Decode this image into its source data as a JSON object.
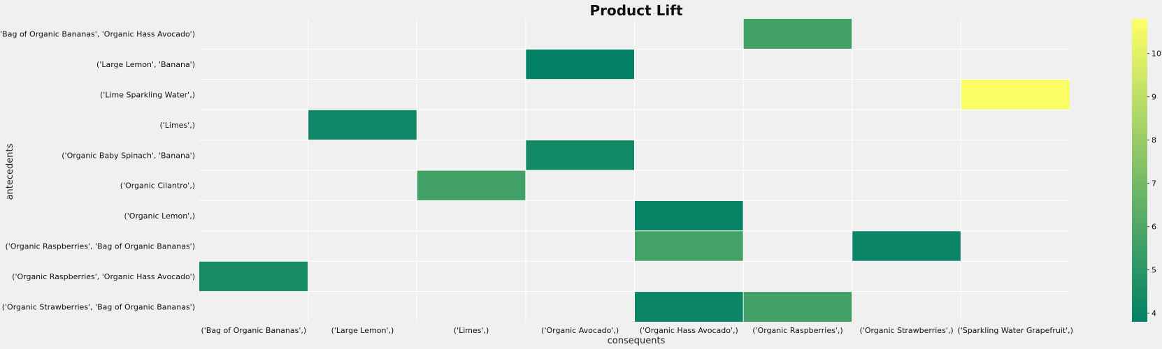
{
  "chart_data": {
    "type": "heatmap",
    "title": "Product Lift",
    "xlabel": "consequents",
    "ylabel": "antecedents",
    "x_categories": [
      "('Bag of Organic Bananas',)",
      "('Large Lemon',)",
      "('Limes',)",
      "('Organic Avocado',)",
      "('Organic Hass Avocado',)",
      "('Organic Raspberries',)",
      "('Organic Strawberries',)",
      "('Sparkling Water Grapefruit',)"
    ],
    "y_categories": [
      "('Bag of Organic Bananas', 'Organic Hass Avocado')",
      "('Large Lemon', 'Banana')",
      "('Lime Sparkling Water',)",
      "('Limes',)",
      "('Organic Baby Spinach', 'Banana')",
      "('Organic Cilantro',)",
      "('Organic Lemon',)",
      "('Organic Raspberries', 'Bag of Organic Bananas')",
      "('Organic Raspberries', 'Organic Hass Avocado')",
      "('Organic Strawberries', 'Bag of Organic Bananas')"
    ],
    "cells": [
      {
        "row": 0,
        "col": 5,
        "value": 5.6
      },
      {
        "row": 1,
        "col": 3,
        "value": 3.9
      },
      {
        "row": 2,
        "col": 7,
        "value": 10.7
      },
      {
        "row": 3,
        "col": 1,
        "value": 4.2
      },
      {
        "row": 4,
        "col": 3,
        "value": 4.3
      },
      {
        "row": 5,
        "col": 2,
        "value": 5.6
      },
      {
        "row": 6,
        "col": 4,
        "value": 4.0
      },
      {
        "row": 7,
        "col": 4,
        "value": 5.7
      },
      {
        "row": 7,
        "col": 6,
        "value": 4.1
      },
      {
        "row": 8,
        "col": 0,
        "value": 4.4
      },
      {
        "row": 9,
        "col": 4,
        "value": 4.1
      },
      {
        "row": 9,
        "col": 5,
        "value": 5.6
      }
    ],
    "colorbar": {
      "min": 3.8,
      "max": 10.8,
      "ticks": [
        4,
        5,
        6,
        7,
        8,
        9,
        10
      ],
      "colormap": "summer"
    },
    "grid": true
  },
  "colors": {
    "background": "#f0f0f0",
    "empty_cell": "#f0f0f0",
    "grid_line": "#ffffff",
    "cmap_low": "#008066",
    "cmap_high": "#ffff66"
  }
}
